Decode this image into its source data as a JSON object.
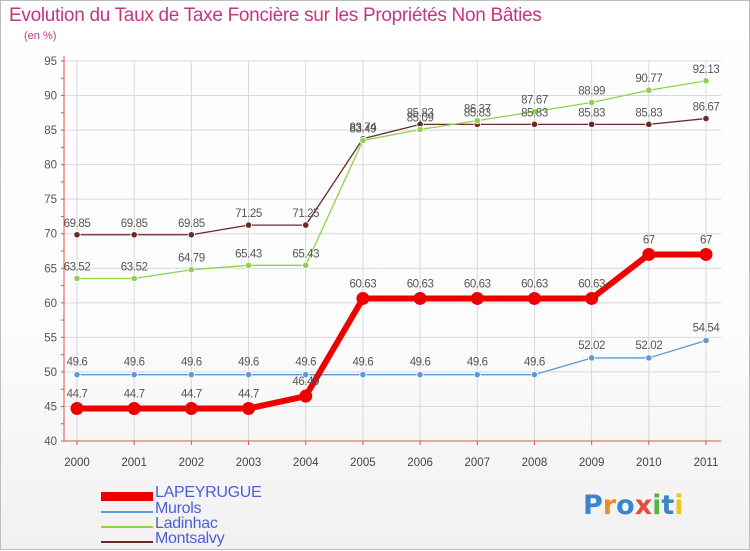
{
  "title": "Evolution du Taux de Taxe Foncière sur les Propriétés Non Bâties",
  "subtitle": "(en %)",
  "logo_text": "Proxiti",
  "chart_data": {
    "type": "line",
    "title": "Evolution du Taux de Taxe Foncière sur les Propriétés Non Bâties",
    "ylabel": "(en %)",
    "xlabel": "",
    "ylim": [
      40,
      95
    ],
    "yticks": [
      40,
      45,
      50,
      55,
      60,
      65,
      70,
      75,
      80,
      85,
      90,
      95
    ],
    "grid": true,
    "legend_position": "bottom-left",
    "x": [
      "2000",
      "2001",
      "2002",
      "2003",
      "2004",
      "2005",
      "2006",
      "2007",
      "2008",
      "2009",
      "2010",
      "2011"
    ],
    "series": [
      {
        "name": "LAPEYRUGUE",
        "color": "#ee0000",
        "bold": true,
        "values": [
          44.7,
          44.7,
          44.7,
          44.7,
          46.49,
          60.63,
          60.63,
          60.63,
          60.63,
          60.63,
          67,
          67
        ],
        "labels": [
          "44.7",
          "44.7",
          "44.7",
          "44.7",
          "46.49",
          "60.63",
          "60.63",
          "60.63",
          "60.63",
          "60.63",
          "67",
          "67"
        ]
      },
      {
        "name": "Murols",
        "color": "#5b9bd5",
        "values": [
          49.6,
          49.6,
          49.6,
          49.6,
          49.6,
          49.6,
          49.6,
          49.6,
          49.6,
          52.02,
          52.02,
          54.54
        ],
        "labels": [
          "49.6",
          "49.6",
          "49.6",
          "49.6",
          "49.6",
          "49.6",
          "49.6",
          "49.6",
          "49.6",
          "52.02",
          "52.02",
          "54.54"
        ]
      },
      {
        "name": "Ladinhac",
        "color": "#8ed14b",
        "values": [
          63.52,
          63.52,
          64.79,
          65.43,
          65.43,
          83.49,
          85.09,
          86.37,
          87.67,
          88.99,
          90.77,
          92.13
        ],
        "labels": [
          "63.52",
          "63.52",
          "64.79",
          "65.43",
          "65.43",
          "83.49",
          "85.09",
          "86.37",
          "87.67",
          "88.99",
          "90.77",
          "92.13"
        ]
      },
      {
        "name": "Montsalvy",
        "color": "#6b2a2a",
        "values": [
          69.85,
          69.85,
          69.85,
          71.25,
          71.25,
          83.74,
          85.83,
          85.83,
          85.83,
          85.83,
          85.83,
          86.67
        ],
        "labels": [
          "69.85",
          "69.85",
          "69.85",
          "71.25",
          "71.25",
          "83.74",
          "85.83",
          "85.83",
          "85.83",
          "85.83",
          "85.83",
          "86.67"
        ]
      }
    ]
  }
}
